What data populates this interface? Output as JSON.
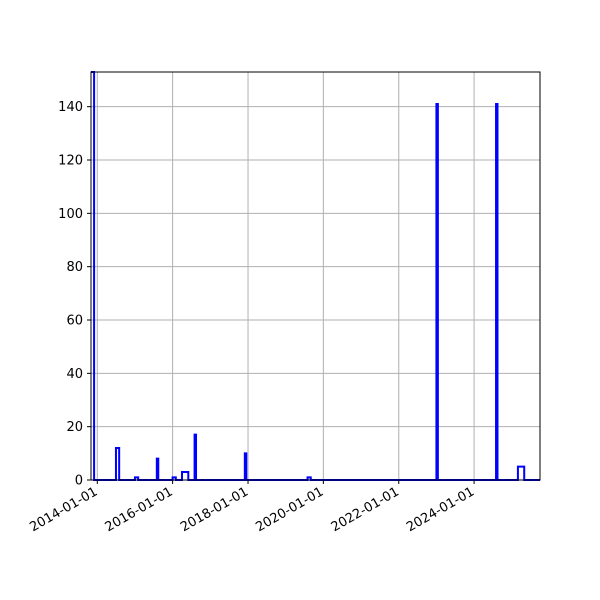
{
  "chart_data": {
    "type": "line",
    "title": "",
    "xlabel": "",
    "ylabel": "",
    "x_axis_type": "date",
    "xlim": [
      "2013-11-01",
      "2025-10-01"
    ],
    "ylim": [
      0,
      153
    ],
    "grid": true,
    "xticks": [
      "2014-01-01",
      "2016-01-01",
      "2018-01-01",
      "2020-01-01",
      "2022-01-01",
      "2024-01-01"
    ],
    "yticks": [
      0,
      20,
      40,
      60,
      80,
      100,
      120,
      140
    ],
    "series": [
      {
        "color": "#0000ff",
        "points": [
          [
            "2013-11-01",
            153
          ],
          [
            "2013-12-01",
            153
          ],
          [
            "2013-12-01",
            0
          ],
          [
            "2014-07-01",
            0
          ],
          [
            "2014-07-01",
            12
          ],
          [
            "2014-08-01",
            12
          ],
          [
            "2014-08-01",
            0
          ],
          [
            "2015-01-01",
            0
          ],
          [
            "2015-01-01",
            1
          ],
          [
            "2015-02-01",
            1
          ],
          [
            "2015-02-01",
            0
          ],
          [
            "2015-08-01",
            0
          ],
          [
            "2015-08-01",
            8
          ],
          [
            "2015-08-15",
            8
          ],
          [
            "2015-08-15",
            0
          ],
          [
            "2016-01-01",
            0
          ],
          [
            "2016-01-01",
            1
          ],
          [
            "2016-02-01",
            1
          ],
          [
            "2016-02-01",
            0
          ],
          [
            "2016-04-01",
            0
          ],
          [
            "2016-04-01",
            3
          ],
          [
            "2016-06-01",
            3
          ],
          [
            "2016-06-01",
            0
          ],
          [
            "2016-08-01",
            0
          ],
          [
            "2016-08-01",
            17
          ],
          [
            "2016-08-15",
            17
          ],
          [
            "2016-08-15",
            0
          ],
          [
            "2017-12-01",
            0
          ],
          [
            "2017-12-01",
            10
          ],
          [
            "2017-12-15",
            10
          ],
          [
            "2017-12-15",
            0
          ],
          [
            "2019-08-01",
            0
          ],
          [
            "2019-08-01",
            1
          ],
          [
            "2019-09-01",
            1
          ],
          [
            "2019-09-01",
            0
          ],
          [
            "2023-01-01",
            0
          ],
          [
            "2023-01-01",
            141
          ],
          [
            "2023-01-15",
            141
          ],
          [
            "2023-01-15",
            0
          ],
          [
            "2024-08-01",
            0
          ],
          [
            "2024-08-01",
            141
          ],
          [
            "2024-08-15",
            141
          ],
          [
            "2024-08-15",
            0
          ],
          [
            "2025-03-01",
            0
          ],
          [
            "2025-03-01",
            5
          ],
          [
            "2025-05-01",
            5
          ],
          [
            "2025-05-01",
            0
          ],
          [
            "2025-10-01",
            0
          ]
        ]
      }
    ]
  }
}
